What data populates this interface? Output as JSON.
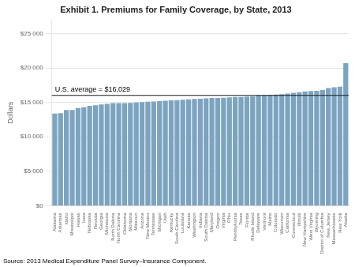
{
  "chart_data": {
    "type": "bar",
    "title": "Exhibit 1. Premiums for Family Coverage, by State, 2013",
    "ylabel": "Dollars",
    "source": "Source: 2013 Medical Expenditure Panel Survey–Insurance Component.",
    "annotations": [
      {
        "y": 16029,
        "label": "U.S. average = $16,029"
      }
    ],
    "color": "#7CA4C0",
    "ylim": [
      0,
      27000
    ],
    "yticks": [
      {
        "value": 0,
        "label": "$0"
      },
      {
        "value": 5000,
        "label": "$5 000"
      },
      {
        "value": 10000,
        "label": "$10 000"
      },
      {
        "value": 15000,
        "label": "$15 000"
      },
      {
        "value": 20000,
        "label": "$20 000"
      },
      {
        "value": 25000,
        "label": "$25 000"
      }
    ],
    "grid": true,
    "categories": [
      "Alabama",
      "Arkansas",
      "Idaho",
      "Mississippi",
      "Hawaii",
      "Iowa",
      "Nebraska",
      "Nevada",
      "Georgia",
      "Minnesota",
      "North Dakota",
      "North Carolina",
      "Oklahoma",
      "Montana",
      "Missouri",
      "Arizona",
      "New Mexico",
      "Tennessee",
      "Michigan",
      "Utah",
      "Kentucky",
      "South Carolina",
      "Louisiana",
      "Kansas",
      "Washington",
      "Indiana",
      "South Dakota",
      "Maryland",
      "Oregon",
      "Virginia",
      "Ohio",
      "Pennsylvania",
      "Texas",
      "Florida",
      "Rhode Island",
      "Delaware",
      "Vermont",
      "Maine",
      "Colorado",
      "Wisconsin",
      "California",
      "Connecticut",
      "Illinois",
      "New Hampshire",
      "West Virginia",
      "Wyoming",
      "District of Columbia",
      "New Jersey",
      "Massachusetts",
      "New York",
      "Alaska"
    ],
    "values": [
      13400,
      13450,
      13900,
      13900,
      14200,
      14300,
      14500,
      14600,
      14700,
      14800,
      14900,
      14900,
      14900,
      14950,
      15000,
      15050,
      15100,
      15150,
      15200,
      15250,
      15300,
      15350,
      15400,
      15450,
      15500,
      15550,
      15600,
      15650,
      15650,
      15700,
      15750,
      15800,
      15800,
      15850,
      15900,
      16000,
      16050,
      16100,
      16150,
      16200,
      16300,
      16400,
      16500,
      16600,
      16650,
      16700,
      16800,
      17100,
      17200,
      17300,
      20700
    ]
  }
}
